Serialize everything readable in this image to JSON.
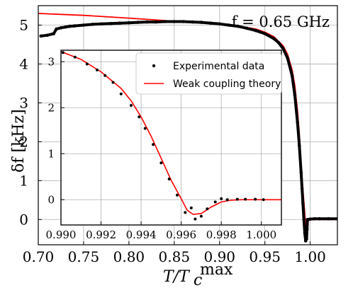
{
  "chart_data": [
    {
      "type": "scatter",
      "panel": "main",
      "xlabel": "T/T_c^max",
      "ylabel": "δf [kHz]",
      "annotation": "f = 0.65 GHz",
      "xlim": [
        0.7,
        1.03
      ],
      "ylim": [
        -0.65,
        5.5
      ],
      "xticks": [
        "0.70",
        "0.75",
        "0.80",
        "0.85",
        "0.90",
        "0.95",
        "1.00"
      ],
      "yticks": [
        "0",
        "1",
        "2",
        "3",
        "4",
        "5"
      ],
      "grid": true,
      "series": [
        {
          "name": "Experimental data",
          "style": "dots",
          "color": "#000000",
          "x": [
            0.703,
            0.71,
            0.717,
            0.72,
            0.725,
            0.73,
            0.735,
            0.74,
            0.75,
            0.76,
            0.77,
            0.78,
            0.79,
            0.8,
            0.81,
            0.82,
            0.83,
            0.84,
            0.85,
            0.86,
            0.87,
            0.88,
            0.89,
            0.9,
            0.91,
            0.92,
            0.93,
            0.94,
            0.95,
            0.96,
            0.965,
            0.97,
            0.975,
            0.98,
            0.983,
            0.986,
            0.988,
            0.99,
            0.991,
            0.992,
            0.993,
            0.994,
            0.995,
            0.996,
            0.9965,
            0.997,
            0.998,
            1.0,
            1.005,
            1.01,
            1.02,
            1.03
          ],
          "y": [
            4.72,
            4.74,
            4.78,
            4.9,
            4.93,
            4.95,
            4.97,
            4.98,
            5.0,
            5.02,
            5.03,
            5.04,
            5.05,
            5.06,
            5.07,
            5.08,
            5.08,
            5.09,
            5.09,
            5.09,
            5.08,
            5.07,
            5.05,
            5.03,
            5.0,
            4.97,
            4.92,
            4.86,
            4.78,
            4.65,
            4.55,
            4.4,
            4.15,
            3.7,
            3.2,
            2.5,
            1.9,
            1.2,
            0.8,
            0.4,
            0.0,
            -0.35,
            -0.55,
            -0.5,
            -0.25,
            0.0,
            0.0,
            0.01,
            0.02,
            0.02,
            0.02,
            0.02
          ]
        },
        {
          "name": "Weak coupling theory",
          "style": "line",
          "color": "#ff0000",
          "x": [
            0.7,
            0.75,
            0.8,
            0.85,
            0.88,
            0.9,
            0.92,
            0.94,
            0.95,
            0.96,
            0.97,
            0.975,
            0.98,
            0.983,
            0.986,
            0.988,
            0.99,
            0.992,
            0.994,
            0.995,
            0.996,
            0.997,
            0.998,
            1.0,
            1.01,
            1.03
          ],
          "y": [
            5.3,
            5.25,
            5.18,
            5.1,
            5.06,
            5.03,
            4.98,
            4.9,
            4.82,
            4.7,
            4.47,
            4.25,
            3.85,
            3.45,
            2.8,
            2.2,
            1.4,
            0.75,
            0.15,
            -0.15,
            -0.3,
            -0.12,
            0.0,
            0.0,
            0.0,
            0.0
          ]
        }
      ]
    },
    {
      "type": "scatter",
      "panel": "inset",
      "xlim": [
        0.99,
        1.001
      ],
      "ylim": [
        -0.55,
        3.25
      ],
      "xticks": [
        "0.990",
        "0.992",
        "0.994",
        "0.996",
        "0.998",
        "1.000"
      ],
      "yticks": [
        "0",
        "1",
        "2",
        "3"
      ],
      "grid": true,
      "legend_position": "top-right",
      "series": [
        {
          "name": "Experimental data",
          "style": "dots",
          "color": "#000000",
          "x": [
            0.9901,
            0.9907,
            0.9913,
            0.9918,
            0.9922,
            0.9926,
            0.993,
            0.9935,
            0.9939,
            0.9942,
            0.9946,
            0.995,
            0.9954,
            0.9958,
            0.9962,
            0.9965,
            0.9967,
            0.997,
            0.9973,
            0.9977,
            0.998,
            0.9983,
            0.9988,
            0.9992,
            0.9997,
            1.0001
          ],
          "y": [
            3.2,
            3.1,
            2.95,
            2.82,
            2.7,
            2.55,
            2.3,
            2.05,
            1.8,
            1.55,
            1.2,
            0.8,
            0.45,
            0.1,
            -0.28,
            -0.18,
            -0.42,
            -0.36,
            -0.2,
            -0.05,
            0.02,
            0.0,
            0.01,
            0.01,
            0.01,
            0.0
          ]
        },
        {
          "name": "Weak coupling theory",
          "style": "line",
          "color": "#ff0000",
          "x": [
            0.99,
            0.991,
            0.992,
            0.993,
            0.9935,
            0.994,
            0.9945,
            0.995,
            0.9955,
            0.996,
            0.9963,
            0.9966,
            0.997,
            0.9975,
            0.998,
            0.9985,
            0.999,
            0.9995,
            1.001
          ],
          "y": [
            3.22,
            3.05,
            2.78,
            2.42,
            2.15,
            1.8,
            1.38,
            0.9,
            0.42,
            0.02,
            -0.23,
            -0.32,
            -0.3,
            -0.16,
            -0.05,
            -0.01,
            0.0,
            0.0,
            0.0
          ]
        }
      ]
    }
  ]
}
